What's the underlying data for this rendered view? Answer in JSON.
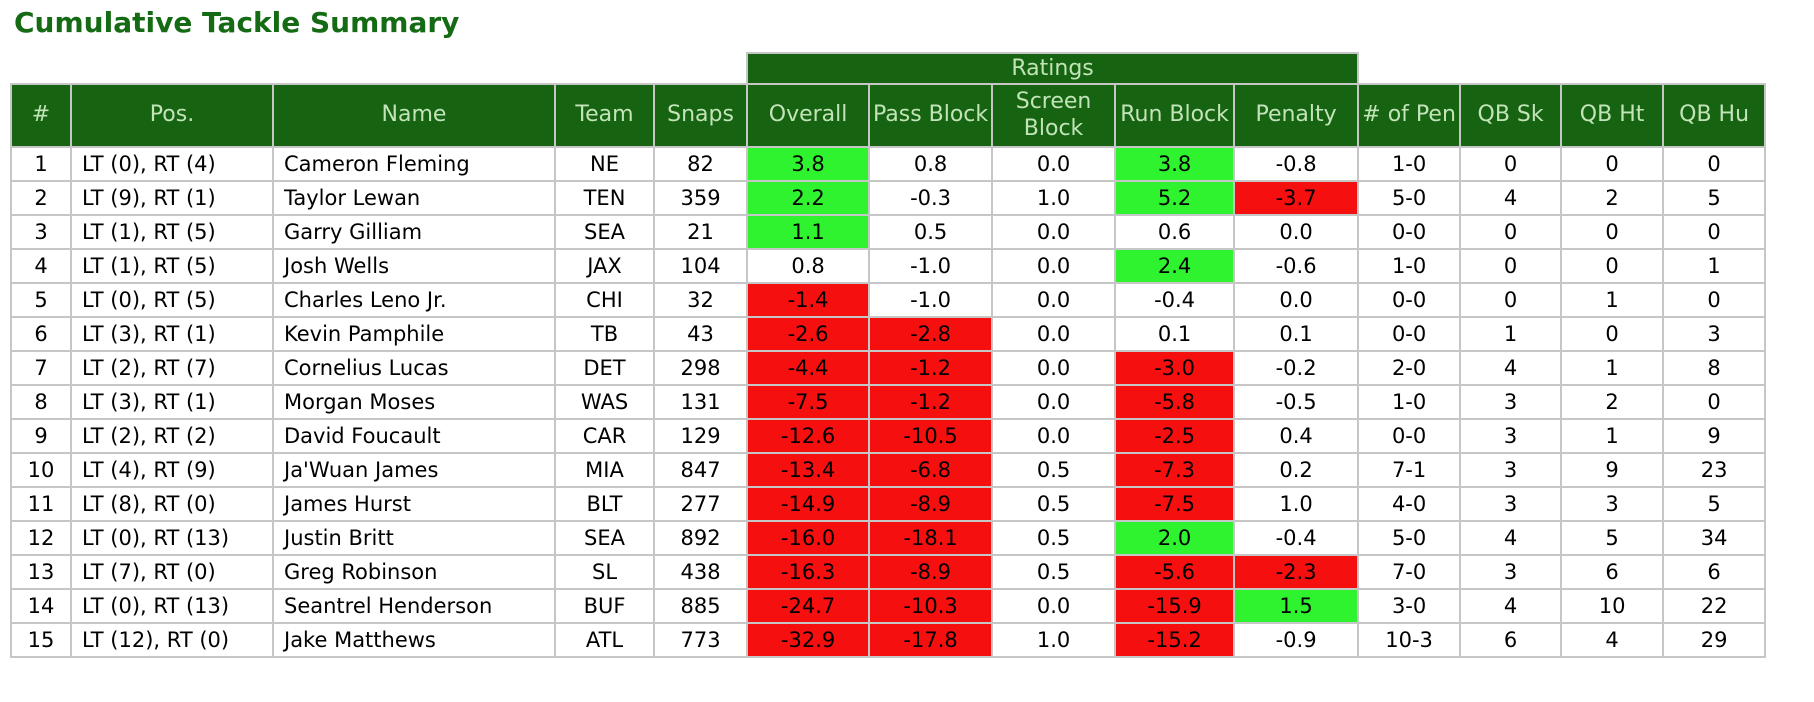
{
  "page_title": "Cumulative Tackle Summary",
  "colors": {
    "title_text": "#146b14",
    "header_bg": "#166311",
    "header_text": "#c2e4b8",
    "grid_line": "#c6c6c6",
    "highlight_positive": "#2ef32e",
    "highlight_negative": "#f50f0f",
    "data_text": "#000000"
  },
  "table": {
    "ratings_group_label": "Ratings",
    "columns": [
      "#",
      "Pos.",
      "Name",
      "Team",
      "Snaps",
      "Overall",
      "Pass Block",
      "Screen Block",
      "Run Block",
      "Penalty",
      "# of Pen",
      "QB Sk",
      "QB Ht",
      "QB Hu"
    ],
    "rows": [
      {
        "rank": "1",
        "pos": "LT (0), RT (4)",
        "name": "Cameron Fleming",
        "team": "NE",
        "snaps": "82",
        "overall": {
          "v": "3.8",
          "hl": "pos"
        },
        "pass_block": {
          "v": "0.8",
          "hl": ""
        },
        "screen_block": {
          "v": "0.0",
          "hl": ""
        },
        "run_block": {
          "v": "3.8",
          "hl": "pos"
        },
        "penalty": {
          "v": "-0.8",
          "hl": ""
        },
        "pens": "1-0",
        "qb_sk": "0",
        "qb_ht": "0",
        "qb_hu": "0"
      },
      {
        "rank": "2",
        "pos": "LT (9), RT (1)",
        "name": "Taylor Lewan",
        "team": "TEN",
        "snaps": "359",
        "overall": {
          "v": "2.2",
          "hl": "pos"
        },
        "pass_block": {
          "v": "-0.3",
          "hl": ""
        },
        "screen_block": {
          "v": "1.0",
          "hl": ""
        },
        "run_block": {
          "v": "5.2",
          "hl": "pos"
        },
        "penalty": {
          "v": "-3.7",
          "hl": "neg"
        },
        "pens": "5-0",
        "qb_sk": "4",
        "qb_ht": "2",
        "qb_hu": "5"
      },
      {
        "rank": "3",
        "pos": "LT (1), RT (5)",
        "name": "Garry Gilliam",
        "team": "SEA",
        "snaps": "21",
        "overall": {
          "v": "1.1",
          "hl": "pos"
        },
        "pass_block": {
          "v": "0.5",
          "hl": ""
        },
        "screen_block": {
          "v": "0.0",
          "hl": ""
        },
        "run_block": {
          "v": "0.6",
          "hl": ""
        },
        "penalty": {
          "v": "0.0",
          "hl": ""
        },
        "pens": "0-0",
        "qb_sk": "0",
        "qb_ht": "0",
        "qb_hu": "0"
      },
      {
        "rank": "4",
        "pos": "LT (1), RT (5)",
        "name": "Josh Wells",
        "team": "JAX",
        "snaps": "104",
        "overall": {
          "v": "0.8",
          "hl": ""
        },
        "pass_block": {
          "v": "-1.0",
          "hl": ""
        },
        "screen_block": {
          "v": "0.0",
          "hl": ""
        },
        "run_block": {
          "v": "2.4",
          "hl": "pos"
        },
        "penalty": {
          "v": "-0.6",
          "hl": ""
        },
        "pens": "1-0",
        "qb_sk": "0",
        "qb_ht": "0",
        "qb_hu": "1"
      },
      {
        "rank": "5",
        "pos": "LT (0), RT (5)",
        "name": "Charles Leno Jr.",
        "team": "CHI",
        "snaps": "32",
        "overall": {
          "v": "-1.4",
          "hl": "neg"
        },
        "pass_block": {
          "v": "-1.0",
          "hl": ""
        },
        "screen_block": {
          "v": "0.0",
          "hl": ""
        },
        "run_block": {
          "v": "-0.4",
          "hl": ""
        },
        "penalty": {
          "v": "0.0",
          "hl": ""
        },
        "pens": "0-0",
        "qb_sk": "0",
        "qb_ht": "1",
        "qb_hu": "0"
      },
      {
        "rank": "6",
        "pos": "LT (3), RT (1)",
        "name": "Kevin Pamphile",
        "team": "TB",
        "snaps": "43",
        "overall": {
          "v": "-2.6",
          "hl": "neg"
        },
        "pass_block": {
          "v": "-2.8",
          "hl": "neg"
        },
        "screen_block": {
          "v": "0.0",
          "hl": ""
        },
        "run_block": {
          "v": "0.1",
          "hl": ""
        },
        "penalty": {
          "v": "0.1",
          "hl": ""
        },
        "pens": "0-0",
        "qb_sk": "1",
        "qb_ht": "0",
        "qb_hu": "3"
      },
      {
        "rank": "7",
        "pos": "LT (2), RT (7)",
        "name": "Cornelius Lucas",
        "team": "DET",
        "snaps": "298",
        "overall": {
          "v": "-4.4",
          "hl": "neg"
        },
        "pass_block": {
          "v": "-1.2",
          "hl": "neg"
        },
        "screen_block": {
          "v": "0.0",
          "hl": ""
        },
        "run_block": {
          "v": "-3.0",
          "hl": "neg"
        },
        "penalty": {
          "v": "-0.2",
          "hl": ""
        },
        "pens": "2-0",
        "qb_sk": "4",
        "qb_ht": "1",
        "qb_hu": "8"
      },
      {
        "rank": "8",
        "pos": "LT (3), RT (1)",
        "name": "Morgan Moses",
        "team": "WAS",
        "snaps": "131",
        "overall": {
          "v": "-7.5",
          "hl": "neg"
        },
        "pass_block": {
          "v": "-1.2",
          "hl": "neg"
        },
        "screen_block": {
          "v": "0.0",
          "hl": ""
        },
        "run_block": {
          "v": "-5.8",
          "hl": "neg"
        },
        "penalty": {
          "v": "-0.5",
          "hl": ""
        },
        "pens": "1-0",
        "qb_sk": "3",
        "qb_ht": "2",
        "qb_hu": "0"
      },
      {
        "rank": "9",
        "pos": "LT (2), RT (2)",
        "name": "David Foucault",
        "team": "CAR",
        "snaps": "129",
        "overall": {
          "v": "-12.6",
          "hl": "neg"
        },
        "pass_block": {
          "v": "-10.5",
          "hl": "neg"
        },
        "screen_block": {
          "v": "0.0",
          "hl": ""
        },
        "run_block": {
          "v": "-2.5",
          "hl": "neg"
        },
        "penalty": {
          "v": "0.4",
          "hl": ""
        },
        "pens": "0-0",
        "qb_sk": "3",
        "qb_ht": "1",
        "qb_hu": "9"
      },
      {
        "rank": "10",
        "pos": "LT (4), RT (9)",
        "name": "Ja'Wuan James",
        "team": "MIA",
        "snaps": "847",
        "overall": {
          "v": "-13.4",
          "hl": "neg"
        },
        "pass_block": {
          "v": "-6.8",
          "hl": "neg"
        },
        "screen_block": {
          "v": "0.5",
          "hl": ""
        },
        "run_block": {
          "v": "-7.3",
          "hl": "neg"
        },
        "penalty": {
          "v": "0.2",
          "hl": ""
        },
        "pens": "7-1",
        "qb_sk": "3",
        "qb_ht": "9",
        "qb_hu": "23"
      },
      {
        "rank": "11",
        "pos": "LT (8), RT (0)",
        "name": "James Hurst",
        "team": "BLT",
        "snaps": "277",
        "overall": {
          "v": "-14.9",
          "hl": "neg"
        },
        "pass_block": {
          "v": "-8.9",
          "hl": "neg"
        },
        "screen_block": {
          "v": "0.5",
          "hl": ""
        },
        "run_block": {
          "v": "-7.5",
          "hl": "neg"
        },
        "penalty": {
          "v": "1.0",
          "hl": ""
        },
        "pens": "4-0",
        "qb_sk": "3",
        "qb_ht": "3",
        "qb_hu": "5"
      },
      {
        "rank": "12",
        "pos": "LT (0), RT (13)",
        "name": "Justin Britt",
        "team": "SEA",
        "snaps": "892",
        "overall": {
          "v": "-16.0",
          "hl": "neg"
        },
        "pass_block": {
          "v": "-18.1",
          "hl": "neg"
        },
        "screen_block": {
          "v": "0.5",
          "hl": ""
        },
        "run_block": {
          "v": "2.0",
          "hl": "pos"
        },
        "penalty": {
          "v": "-0.4",
          "hl": ""
        },
        "pens": "5-0",
        "qb_sk": "4",
        "qb_ht": "5",
        "qb_hu": "34"
      },
      {
        "rank": "13",
        "pos": "LT (7), RT (0)",
        "name": "Greg Robinson",
        "team": "SL",
        "snaps": "438",
        "overall": {
          "v": "-16.3",
          "hl": "neg"
        },
        "pass_block": {
          "v": "-8.9",
          "hl": "neg"
        },
        "screen_block": {
          "v": "0.5",
          "hl": ""
        },
        "run_block": {
          "v": "-5.6",
          "hl": "neg"
        },
        "penalty": {
          "v": "-2.3",
          "hl": "neg"
        },
        "pens": "7-0",
        "qb_sk": "3",
        "qb_ht": "6",
        "qb_hu": "6"
      },
      {
        "rank": "14",
        "pos": "LT (0), RT (13)",
        "name": "Seantrel Henderson",
        "team": "BUF",
        "snaps": "885",
        "overall": {
          "v": "-24.7",
          "hl": "neg"
        },
        "pass_block": {
          "v": "-10.3",
          "hl": "neg"
        },
        "screen_block": {
          "v": "0.0",
          "hl": ""
        },
        "run_block": {
          "v": "-15.9",
          "hl": "neg"
        },
        "penalty": {
          "v": "1.5",
          "hl": "pos"
        },
        "pens": "3-0",
        "qb_sk": "4",
        "qb_ht": "10",
        "qb_hu": "22"
      },
      {
        "rank": "15",
        "pos": "LT (12), RT (0)",
        "name": "Jake Matthews",
        "team": "ATL",
        "snaps": "773",
        "overall": {
          "v": "-32.9",
          "hl": "neg"
        },
        "pass_block": {
          "v": "-17.8",
          "hl": "neg"
        },
        "screen_block": {
          "v": "1.0",
          "hl": ""
        },
        "run_block": {
          "v": "-15.2",
          "hl": "neg"
        },
        "penalty": {
          "v": "-0.9",
          "hl": ""
        },
        "pens": "10-3",
        "qb_sk": "6",
        "qb_ht": "4",
        "qb_hu": "29"
      }
    ]
  }
}
